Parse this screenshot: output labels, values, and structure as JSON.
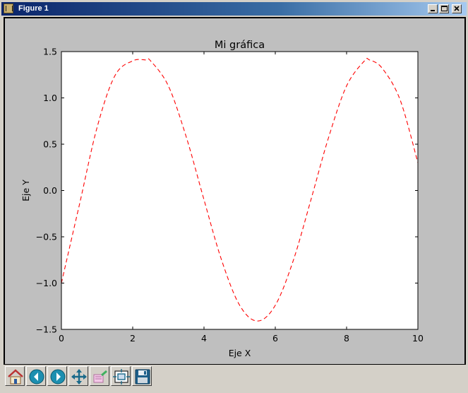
{
  "window": {
    "title": "Figure 1",
    "app_icon": "matplotlib-figure-icon",
    "controls": [
      "minimize-icon",
      "maximize-icon",
      "close-icon"
    ]
  },
  "toolbar": {
    "buttons": [
      {
        "name": "home-button",
        "icon": "home-icon"
      },
      {
        "name": "back-button",
        "icon": "arrow-left-icon"
      },
      {
        "name": "forward-button",
        "icon": "arrow-right-icon"
      },
      {
        "name": "pan-button",
        "icon": "move-arrows-icon"
      },
      {
        "name": "zoom-button",
        "icon": "zoom-rect-icon"
      },
      {
        "name": "subplots-button",
        "icon": "configure-subplots-icon"
      },
      {
        "name": "save-button",
        "icon": "floppy-disk-icon"
      }
    ]
  },
  "chart_data": {
    "type": "line",
    "title": "Mi gráfica",
    "xlabel": "Eje X",
    "ylabel": "Eje Y",
    "xlim": [
      0,
      10
    ],
    "ylim": [
      -1.5,
      1.5
    ],
    "xticks": [
      "0",
      "2",
      "4",
      "6",
      "8",
      "10"
    ],
    "yticks": [
      "1.5",
      "1.0",
      "0.5",
      "0.0",
      "−0.5",
      "−1.0",
      "−1.5"
    ],
    "grid": false,
    "series": [
      {
        "line_style": "dashed",
        "color": "#ff0000",
        "x": [
          0,
          0.5,
          1,
          1.5,
          2,
          2.36,
          2.5,
          3,
          3.5,
          4,
          4.5,
          5,
          5.5,
          6,
          6.5,
          7,
          7.5,
          8,
          8.5,
          8.64,
          9,
          9.5,
          10
        ],
        "y": [
          -1.0,
          -0.16,
          0.68,
          1.24,
          1.4,
          1.41,
          1.4,
          1.13,
          0.58,
          -0.1,
          -0.76,
          -1.24,
          -1.41,
          -1.24,
          -0.76,
          -0.1,
          0.58,
          1.13,
          1.4,
          1.41,
          1.32,
          0.98,
          0.3
        ]
      }
    ]
  }
}
